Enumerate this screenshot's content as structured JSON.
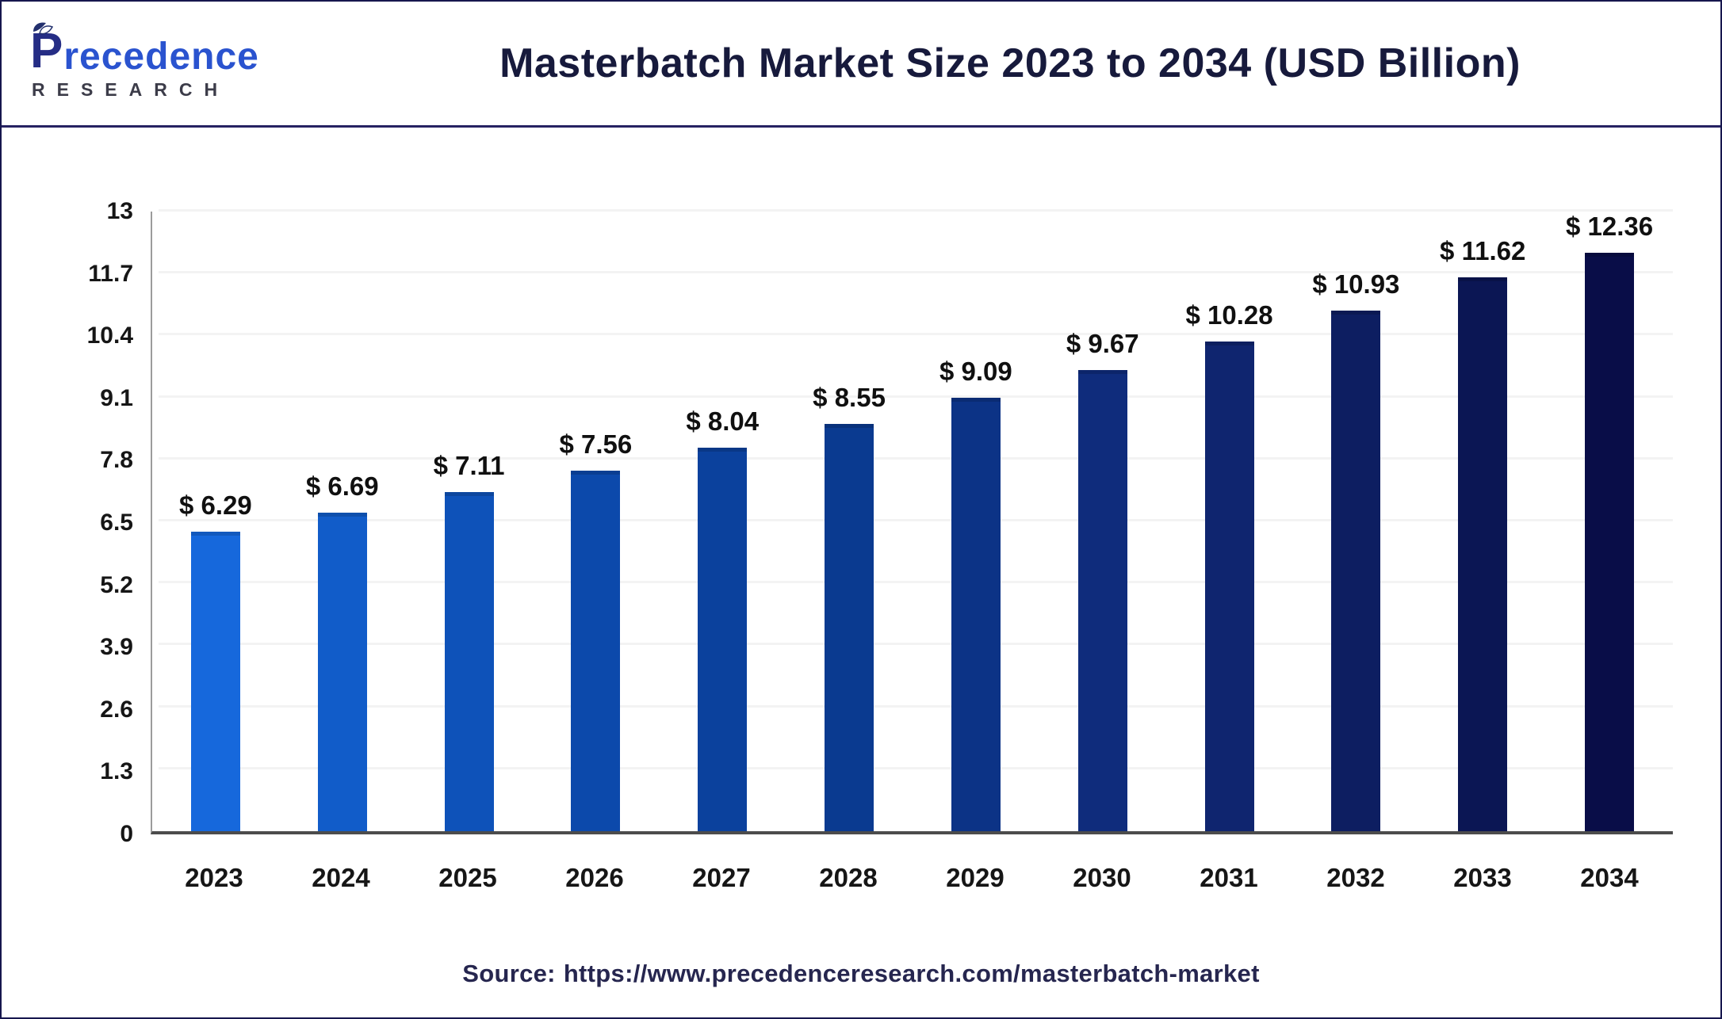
{
  "header": {
    "logo": {
      "wordmark_first_letter": "P",
      "wordmark_rest": "recedence",
      "subtitle": "RESEARCH"
    },
    "title": "Masterbatch Market Size 2023 to 2034 (USD Billion)"
  },
  "chart_data": {
    "type": "bar",
    "title": "Masterbatch Market Size 2023 to 2034 (USD Billion)",
    "unit": "USD Billion",
    "categories": [
      "2023",
      "2024",
      "2025",
      "2026",
      "2027",
      "2028",
      "2029",
      "2030",
      "2031",
      "2032",
      "2033",
      "2034"
    ],
    "values": [
      6.29,
      6.69,
      7.11,
      7.56,
      8.04,
      8.55,
      9.09,
      9.67,
      10.28,
      10.93,
      11.62,
      12.36
    ],
    "value_labels": [
      "$ 6.29",
      "$ 6.69",
      "$ 7.11",
      "$ 7.56",
      "$ 8.04",
      "$ 8.55",
      "$ 9.09",
      "$ 9.67",
      "$ 10.28",
      "$ 10.93",
      "$ 11.62",
      "$ 12.36"
    ],
    "xlabel": "",
    "ylabel": "",
    "ylim": [
      0,
      13
    ],
    "y_ticks": [
      0,
      1.3,
      2.6,
      3.9,
      5.2,
      6.5,
      7.8,
      9.1,
      10.4,
      11.7,
      13
    ],
    "y_tick_labels": [
      "0",
      "1.3",
      "2.6",
      "3.9",
      "5.2",
      "6.5",
      "7.8",
      "9.1",
      "10.4",
      "11.7",
      "13"
    ],
    "grid": "horizontal-faint",
    "legend": "none",
    "bar_colors": [
      "#1668DC",
      "#115CC9",
      "#0E52B9",
      "#0C49AB",
      "#0B419D",
      "#0A3A90",
      "#0C3386",
      "#0F2C7C",
      "#0F256F",
      "#0D1E61",
      "#0B1654",
      "#090D48"
    ]
  },
  "footer": {
    "source_label": "Source:",
    "source_url": "https://www.precedenceresearch.com/masterbatch-market"
  }
}
